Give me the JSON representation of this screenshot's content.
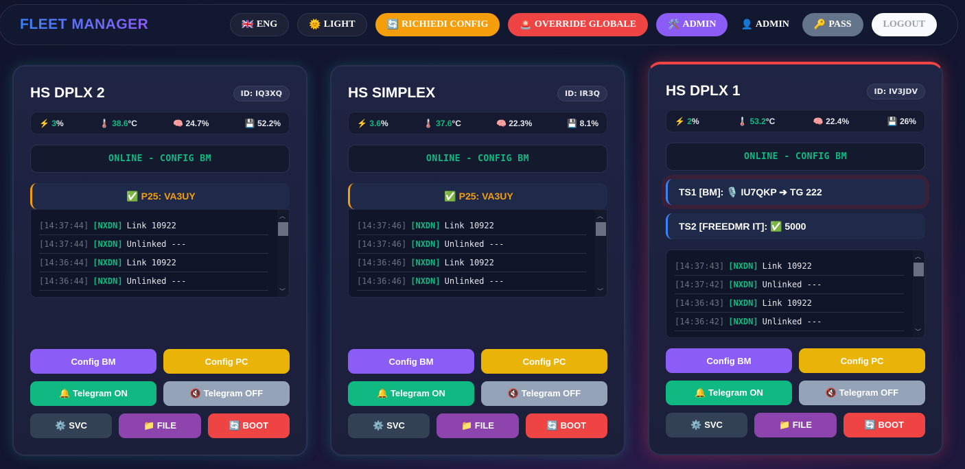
{
  "header": {
    "brand": "FLEET MANAGER",
    "buttons": [
      {
        "id": "lang",
        "icon": "🇬🇧",
        "label": "ENG",
        "style": "dark"
      },
      {
        "id": "theme",
        "icon": "🌞",
        "label": "LIGHT",
        "style": "dark"
      },
      {
        "id": "request-config",
        "icon": "🔄",
        "label": "RICHIEDI CONFIG",
        "bg": "#f59e0b"
      },
      {
        "id": "global-override",
        "icon": "🚨",
        "label": "OVERRIDE GLOBALE",
        "bg": "#ef4444"
      },
      {
        "id": "admin",
        "icon": "🛠️",
        "label": "ADMIN",
        "bg": "#8b5cf6"
      },
      {
        "id": "user",
        "icon": "👤",
        "label": "ADMIN",
        "style": "plain"
      },
      {
        "id": "password",
        "icon": "🔑",
        "label": "PASS",
        "bg": "#64748b"
      },
      {
        "id": "logout",
        "icon": "",
        "label": "LOGOUT",
        "bg": "#f8fafc",
        "color": "#9ca3af"
      }
    ]
  },
  "cards": [
    {
      "name": "HS DPLX 2",
      "id": "ID: IQ3XQ",
      "cpu": "3",
      "temp": "38.6",
      "ram": "24.7%",
      "disk": "52.2%",
      "status": "ONLINE - CONFIG BM",
      "mode": "✅ P25: VA3UY",
      "log": [
        [
          "[14:37:44]",
          "[NXDN]",
          "Link 10922"
        ],
        [
          "[14:37:44]",
          "[NXDN]",
          "Unlinked ---"
        ],
        [
          "[14:36:44]",
          "[NXDN]",
          "Link 10922"
        ],
        [
          "[14:36:44]",
          "[NXDN]",
          "Unlinked ---"
        ]
      ]
    },
    {
      "name": "HS SIMPLEX",
      "id": "ID: IR3Q",
      "cpu": "3.6",
      "temp": "37.6",
      "ram": "22.3%",
      "disk": "8.1%",
      "status": "ONLINE - CONFIG BM",
      "mode": "✅ P25: VA3UY",
      "log": [
        [
          "[14:37:46]",
          "[NXDN]",
          "Link 10922"
        ],
        [
          "[14:37:46]",
          "[NXDN]",
          "Unlinked ---"
        ],
        [
          "[14:36:46]",
          "[NXDN]",
          "Link 10922"
        ],
        [
          "[14:36:46]",
          "[NXDN]",
          "Unlinked ---"
        ]
      ]
    },
    {
      "name": "HS DPLX 1",
      "id": "ID: IV3JDV",
      "cpu": "2",
      "temp": "53.2",
      "ram": "22.4%",
      "disk": "26%",
      "status": "ONLINE - CONFIG BM",
      "alert": true,
      "slots": [
        "TS1 [BM]: 🎙️ IU7QKP ➔ TG 222",
        "TS2 [FREEDMR IT]: ✅ 5000"
      ],
      "log": [
        [
          "[14:37:43]",
          "[NXDN]",
          "Link 10922"
        ],
        [
          "[14:37:42]",
          "[NXDN]",
          "Unlinked ---"
        ],
        [
          "[14:36:43]",
          "[NXDN]",
          "Link 10922"
        ],
        [
          "[14:36:42]",
          "[NXDN]",
          "Unlinked ---"
        ]
      ]
    }
  ],
  "stat_icons": {
    "cpu": "⚡",
    "temp": "🌡️",
    "ram": "🧠",
    "disk": "💾",
    "pct": "%",
    "deg": "°C"
  },
  "card_buttons": [
    [
      {
        "id": "config-bm",
        "label": "Config BM",
        "bg": "#8b5cf6"
      },
      {
        "id": "config-pc",
        "label": "Config PC",
        "bg": "#eab308"
      }
    ],
    [
      {
        "id": "telegram-on",
        "label": "🔔 Telegram ON",
        "bg": "#10b981"
      },
      {
        "id": "telegram-off",
        "label": "🔇 Telegram OFF",
        "bg": "#94a3b8"
      }
    ],
    [
      {
        "id": "svc",
        "label": "⚙️ SVC",
        "bg": "#334155"
      },
      {
        "id": "file",
        "label": "📁 FILE",
        "bg": "#8e44ad"
      },
      {
        "id": "boot",
        "label": "🔄 BOOT",
        "bg": "#ef4444"
      }
    ]
  ]
}
